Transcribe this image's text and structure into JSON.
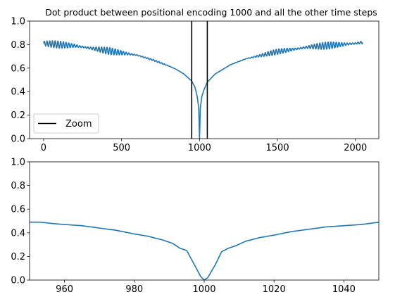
{
  "chart_data": [
    {
      "type": "line",
      "title": "Dot product between positional encoding 1000 and all the other time steps",
      "xlabel": "",
      "ylabel": "",
      "xlim": [
        -90,
        2150
      ],
      "ylim": [
        0,
        1
      ],
      "xticks": [
        0,
        500,
        1000,
        1500,
        2000
      ],
      "xtick_labels": [
        "0",
        "500",
        "1000",
        "1500",
        "2000"
      ],
      "yticks": [
        0,
        0.2,
        0.4,
        0.6,
        0.8,
        1.0
      ],
      "ytick_labels": [
        "0.0",
        "0.2",
        "0.4",
        "0.6",
        "0.8",
        "1.0"
      ],
      "series": [
        {
          "color": "#1f77b4",
          "x": [
            0,
            100,
            200,
            300,
            400,
            500,
            600,
            700,
            800,
            850,
            900,
            950,
            970,
            985,
            995,
            1000,
            1005,
            1015,
            1030,
            1050,
            1100,
            1150,
            1200,
            1300,
            1400,
            1500,
            1600,
            1700,
            1800,
            1900,
            2000,
            2047
          ],
          "y": [
            0.81,
            0.8,
            0.79,
            0.77,
            0.75,
            0.73,
            0.71,
            0.67,
            0.62,
            0.59,
            0.55,
            0.49,
            0.44,
            0.36,
            0.26,
            0.0,
            0.26,
            0.36,
            0.42,
            0.48,
            0.55,
            0.59,
            0.63,
            0.68,
            0.71,
            0.74,
            0.76,
            0.78,
            0.79,
            0.8,
            0.81,
            0.82
          ],
          "oscillation_amplitude": 0.03
        }
      ],
      "vlines": [
        {
          "x": 950,
          "color": "#000000",
          "label": "Zoom"
        },
        {
          "x": 1050,
          "color": "#000000"
        }
      ],
      "legend": {
        "placement": "lower-left",
        "entries": [
          {
            "label": "Zoom",
            "color": "#000000"
          }
        ]
      }
    },
    {
      "type": "line",
      "title": "",
      "xlabel": "",
      "ylabel": "",
      "xlim": [
        950,
        1050
      ],
      "ylim": [
        0,
        1
      ],
      "xticks": [
        960,
        980,
        1000,
        1020,
        1040
      ],
      "xtick_labels": [
        "960",
        "980",
        "1000",
        "1020",
        "1040"
      ],
      "yticks": [
        0,
        0.2,
        0.4,
        0.6,
        0.8,
        1.0
      ],
      "ytick_labels": [
        "0.0",
        "0.2",
        "0.4",
        "0.6",
        "0.8",
        "1.0"
      ],
      "series": [
        {
          "color": "#1f77b4",
          "x": [
            950,
            953,
            956,
            960,
            965,
            970,
            975,
            980,
            984,
            988,
            991,
            993,
            995,
            997,
            999,
            1000,
            1001,
            1003,
            1005,
            1007,
            1009,
            1012,
            1016,
            1020,
            1025,
            1030,
            1035,
            1040,
            1045,
            1050
          ],
          "y": [
            0.49,
            0.49,
            0.48,
            0.47,
            0.46,
            0.44,
            0.42,
            0.39,
            0.37,
            0.34,
            0.31,
            0.27,
            0.25,
            0.14,
            0.03,
            0.0,
            0.02,
            0.12,
            0.24,
            0.27,
            0.29,
            0.33,
            0.36,
            0.38,
            0.41,
            0.43,
            0.45,
            0.46,
            0.47,
            0.49
          ],
          "oscillation_amplitude": 0
        }
      ]
    }
  ]
}
